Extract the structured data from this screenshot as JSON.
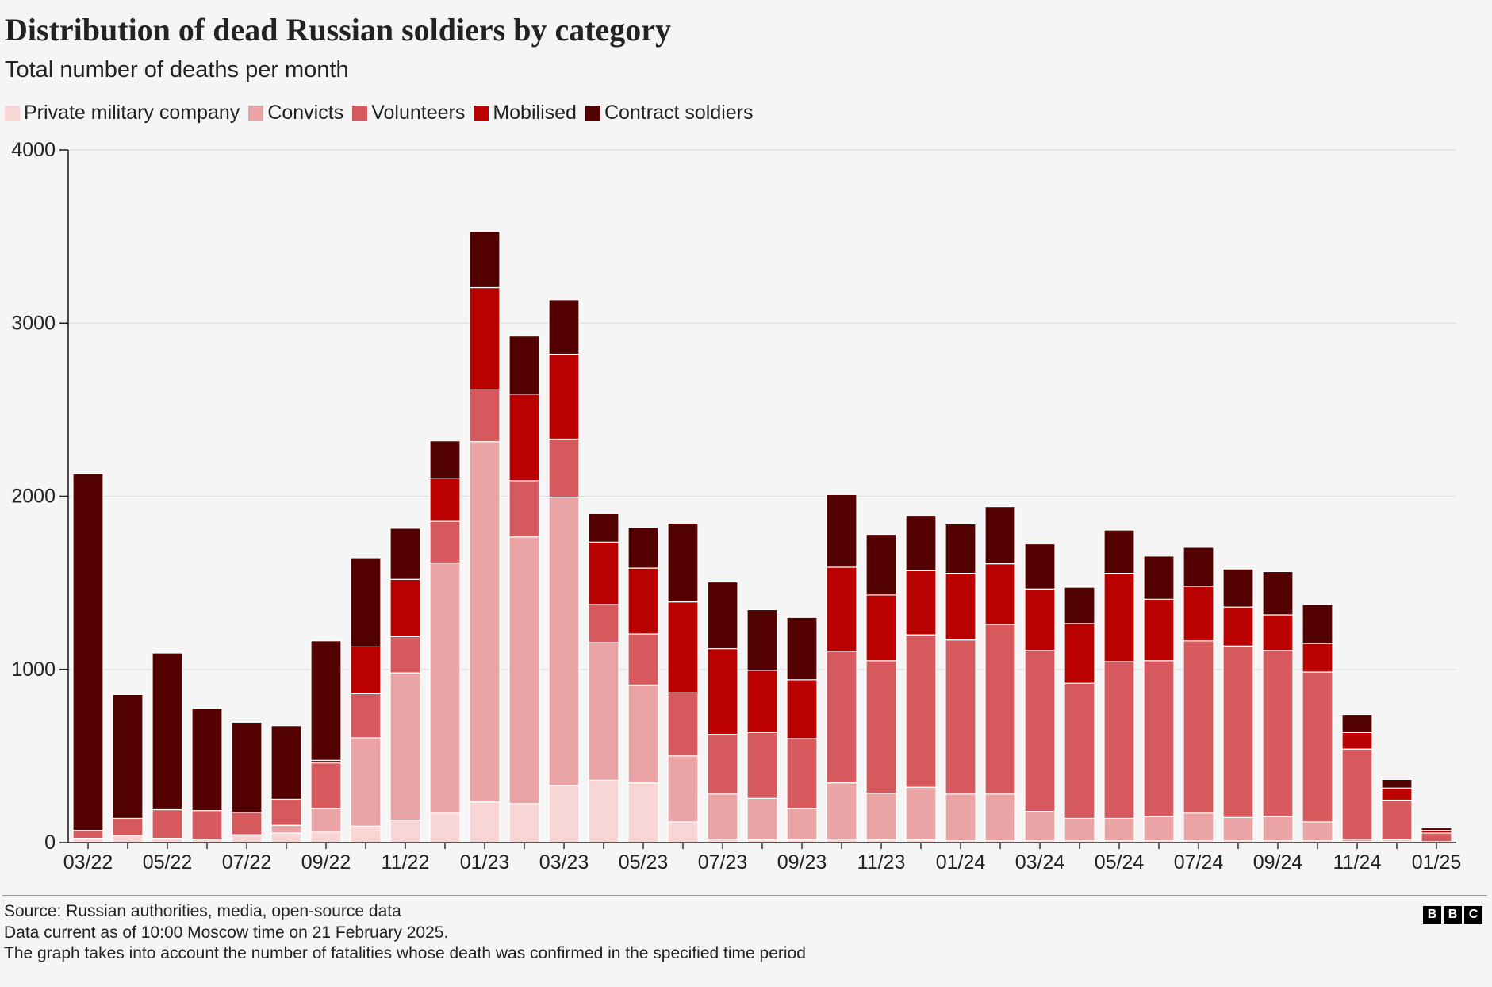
{
  "chart_data": {
    "type": "bar",
    "stacked": true,
    "title": "Distribution of dead Russian soldiers by category",
    "subtitle": "Total number of deaths per month",
    "xlabel": "",
    "ylabel": "",
    "ylim": [
      0,
      4000
    ],
    "y_ticks": [
      0,
      1000,
      2000,
      3000,
      4000
    ],
    "x_tick_labels": [
      "03/22",
      "05/22",
      "07/22",
      "09/22",
      "11/22",
      "01/23",
      "03/23",
      "05/23",
      "07/23",
      "09/23",
      "11/23",
      "01/24",
      "03/24",
      "05/24",
      "07/24",
      "09/24",
      "11/24",
      "01/25"
    ],
    "months_between_ticks": 2,
    "grid": true,
    "series": [
      {
        "name": "Private military company",
        "color": "#f9d6d6",
        "values": [
          25,
          40,
          25,
          20,
          45,
          55,
          60,
          95,
          130,
          170,
          235,
          225,
          330,
          360,
          345,
          120,
          20,
          15,
          15,
          20,
          15,
          15,
          10,
          10,
          10,
          10,
          10,
          10,
          10,
          10,
          10,
          10,
          5,
          5,
          0
        ]
      },
      {
        "name": "Convicts",
        "color": "#eba4a5",
        "values": [
          0,
          0,
          0,
          0,
          0,
          45,
          135,
          510,
          850,
          1445,
          2080,
          1540,
          1665,
          795,
          565,
          380,
          260,
          240,
          180,
          325,
          270,
          305,
          270,
          270,
          170,
          130,
          130,
          140,
          160,
          135,
          140,
          110,
          15,
          10,
          5
        ]
      },
      {
        "name": "Volunteers",
        "color": "#d5595d",
        "values": [
          45,
          100,
          165,
          165,
          130,
          150,
          265,
          255,
          210,
          240,
          300,
          325,
          335,
          220,
          295,
          365,
          345,
          380,
          405,
          760,
          765,
          880,
          890,
          980,
          930,
          780,
          905,
          900,
          995,
          990,
          960,
          865,
          520,
          230,
          50
        ]
      },
      {
        "name": "Mobilised",
        "color": "#bb0000",
        "values": [
          0,
          0,
          0,
          0,
          0,
          0,
          15,
          270,
          330,
          250,
          590,
          500,
          490,
          360,
          380,
          525,
          495,
          360,
          340,
          485,
          380,
          370,
          385,
          350,
          355,
          345,
          510,
          355,
          315,
          225,
          205,
          165,
          95,
          70,
          15
        ]
      },
      {
        "name": "Contract soldiers",
        "color": "#520000",
        "values": [
          2060,
          715,
          905,
          590,
          520,
          425,
          690,
          515,
          295,
          215,
          325,
          335,
          315,
          165,
          235,
          455,
          385,
          350,
          360,
          420,
          350,
          320,
          285,
          330,
          260,
          210,
          250,
          250,
          225,
          220,
          250,
          225,
          105,
          50,
          15
        ]
      }
    ]
  },
  "footer": {
    "source": "Source: Russian authorities, media, open-source data",
    "note_1": "Data current as of 10:00 Moscow time on 21 February 2025.",
    "note_2": "The graph takes into account the number of fatalities whose death was confirmed in the specified time period",
    "logo_letters": [
      "B",
      "B",
      "C"
    ]
  },
  "colors": {
    "background": "#f5f5f5",
    "text": "#222222",
    "grid": "#dedede",
    "axis": "#222222",
    "separator": "#ffffff"
  }
}
